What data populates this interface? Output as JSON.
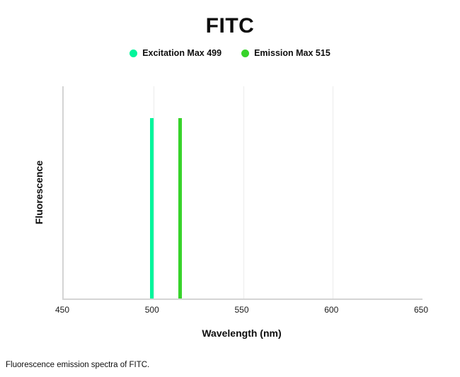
{
  "legend": {
    "items": [
      {
        "label": "Excitation Max 499",
        "color": "#00F59B"
      },
      {
        "label": "Emission Max 515",
        "color": "#37D32A"
      }
    ]
  },
  "chart_data": {
    "type": "bar",
    "title": "FITC",
    "xlabel": "Wavelength (nm)",
    "ylabel": "Fluorescence",
    "xlim": [
      450,
      650
    ],
    "x_ticks": [
      450,
      500,
      550,
      600,
      650
    ],
    "gridlines": [
      500,
      550,
      600
    ],
    "grid": "faint-vertical",
    "legend_position": "top-center",
    "axis_color": "#d4d4d4",
    "series": [
      {
        "name": "Excitation Max 499",
        "wavelength_nm": 499,
        "height_frac": 0.85,
        "color": "#00F59B"
      },
      {
        "name": "Emission Max 515",
        "wavelength_nm": 515,
        "height_frac": 0.85,
        "color": "#37D32A"
      }
    ],
    "caption": "Fluorescence emission spectra of FITC."
  }
}
